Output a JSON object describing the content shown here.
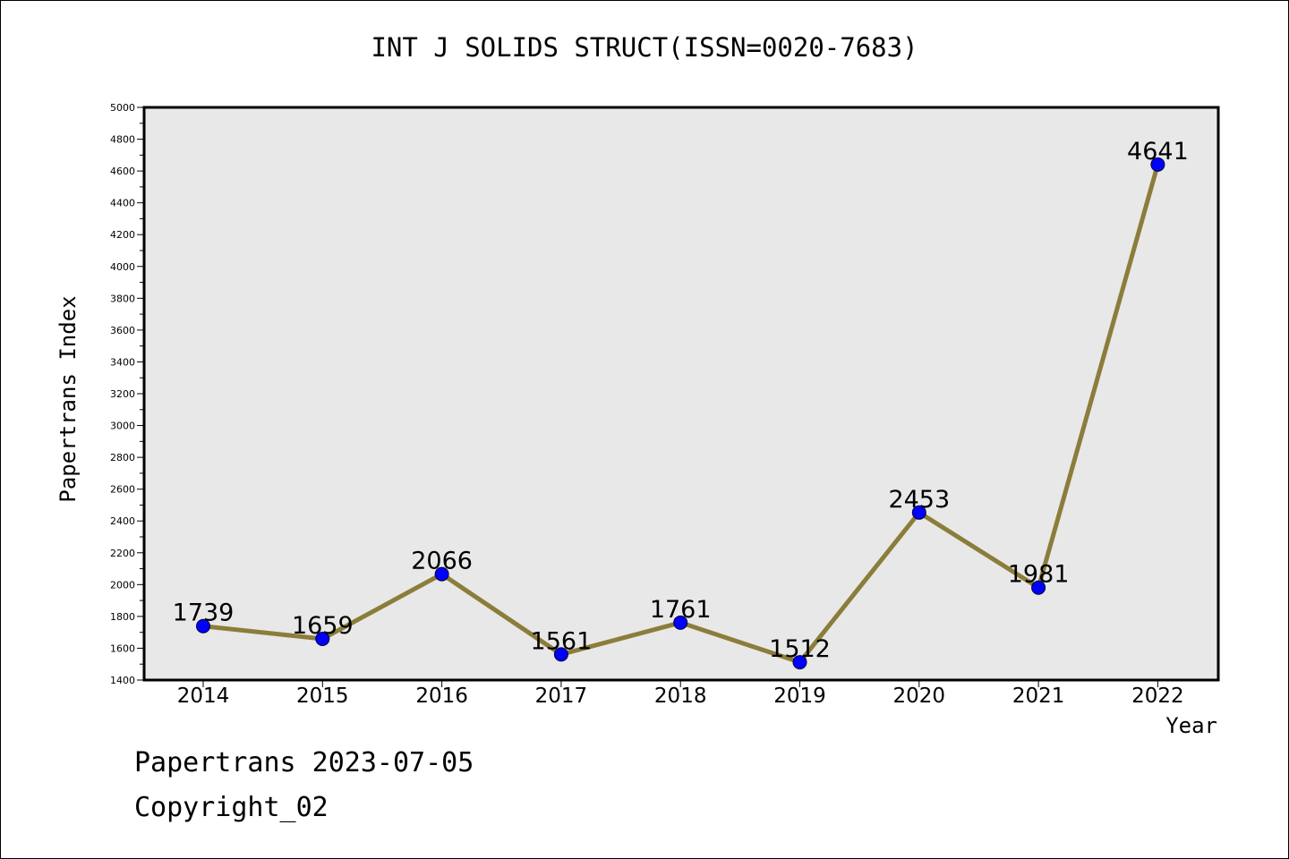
{
  "chart_data": {
    "type": "line",
    "title": "INT J SOLIDS STRUCT(ISSN=0020-7683)",
    "xlabel": "Year",
    "ylabel": "Papertrans Index",
    "categories": [
      "2014",
      "2015",
      "2016",
      "2017",
      "2018",
      "2019",
      "2020",
      "2021",
      "2022"
    ],
    "series": [
      {
        "values": [
          1739,
          1659,
          2066,
          1561,
          1761,
          1512,
          2453,
          1981,
          4641
        ],
        "labels": [
          "1739",
          "1659",
          "2066",
          "1561",
          "1761",
          "1512",
          "2453",
          "1981",
          "4641"
        ]
      }
    ],
    "ylim": [
      1400,
      5000
    ],
    "yticks": [
      "1400",
      "1600",
      "1800",
      "2000",
      "2200",
      "2400",
      "2600",
      "2800",
      "3000",
      "3200",
      "3400",
      "3600",
      "3800",
      "4000",
      "4200",
      "4400",
      "4600",
      "4800",
      "5000"
    ],
    "grid": false,
    "legend": "none",
    "colors": {
      "line": "#8b7d3a",
      "marker": "#0000ff",
      "plot_background": "#e8e8e8",
      "axis": "#000000"
    }
  },
  "footer": {
    "date_line": "Papertrans 2023-07-05",
    "copyright_line": "Copyright_02"
  }
}
